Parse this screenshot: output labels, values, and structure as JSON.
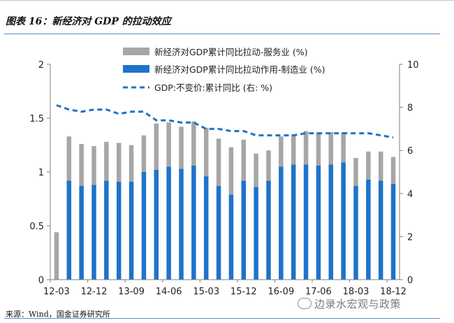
{
  "caption": "图表 16：新经济对 GDP 的拉动效应",
  "source": "来源：Wind，国金证券研究所",
  "watermark": "边录水宏观与政策",
  "chart_data": {
    "type": "bar",
    "stacked": true,
    "title": "",
    "categories": [
      "12-03",
      "12-06",
      "12-09",
      "12-12",
      "13-03",
      "13-06",
      "13-09",
      "13-12",
      "14-03",
      "14-06",
      "14-09",
      "14-12",
      "15-03",
      "15-06",
      "15-09",
      "15-12",
      "16-03",
      "16-06",
      "16-09",
      "16-12",
      "17-03",
      "17-06",
      "17-09",
      "17-12",
      "18-03",
      "18-06",
      "18-09",
      "18-12"
    ],
    "x_tick_labels": [
      "12-03",
      "12-12",
      "13-09",
      "14-06",
      "15-03",
      "15-12",
      "16-09",
      "17-06",
      "18-03",
      "18-12"
    ],
    "series": [
      {
        "name": "新经济对GDP累计同比拉动作用-制造业 (%)",
        "color": "#1e73c9",
        "axis": "left",
        "values": [
          0,
          0.92,
          0.87,
          0.88,
          0.92,
          0.91,
          0.91,
          1.0,
          1.02,
          1.05,
          1.03,
          1.06,
          0.96,
          0.87,
          0.79,
          0.92,
          0.86,
          0.92,
          1.05,
          1.07,
          1.07,
          1.06,
          1.07,
          1.09,
          0.87,
          0.93,
          0.92,
          0.89
        ]
      },
      {
        "name": "新经济对GDP累计同比拉动-服务业 (%)",
        "color": "#a6a6a6",
        "axis": "left",
        "values": [
          0.44,
          0.41,
          0.39,
          0.36,
          0.36,
          0.36,
          0.34,
          0.34,
          0.43,
          0.41,
          0.39,
          0.41,
          0.45,
          0.44,
          0.44,
          0.38,
          0.31,
          0.28,
          0.28,
          0.28,
          0.31,
          0.31,
          0.3,
          0.28,
          0.26,
          0.26,
          0.27,
          0.25
        ]
      },
      {
        "name": "GDP:不变价:累计同比（右：%）",
        "color": "#1e73c9",
        "axis": "right",
        "style": "dashed-line",
        "values": [
          8.1,
          7.9,
          7.8,
          7.9,
          7.9,
          7.7,
          7.8,
          7.8,
          7.4,
          7.4,
          7.3,
          7.3,
          7.0,
          7.0,
          6.9,
          6.9,
          6.7,
          6.7,
          6.7,
          6.7,
          6.8,
          6.8,
          6.8,
          6.8,
          6.8,
          6.8,
          6.7,
          6.6
        ]
      }
    ],
    "legend": [
      "新经济对GDP累计同比拉动-服务业 (%)",
      "新经济对GDP累计同比拉动作用-制造业 (%)",
      "GDP:不变价:累计同比 (右: %)"
    ],
    "ylim": [
      0,
      2
    ],
    "y_ticks": [
      "0",
      "0.5",
      "1",
      "1.5",
      "2"
    ],
    "y2lim": [
      0,
      10
    ],
    "y2_ticks": [
      "0",
      "2",
      "4",
      "6",
      "8",
      "10"
    ],
    "legend_position": "top-center"
  }
}
